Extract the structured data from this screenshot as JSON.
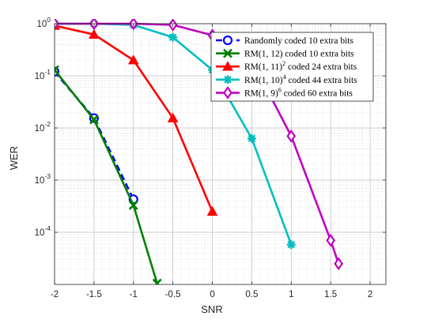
{
  "chart_data": {
    "type": "line",
    "title": "",
    "xlabel": "SNR",
    "ylabel": "WER",
    "xscale": "linear",
    "yscale": "log",
    "xlim": [
      -2,
      2.2
    ],
    "ylim": [
      1e-05,
      1
    ],
    "grid": true,
    "minor_grid": true,
    "legend_position": "top-right",
    "x_ticks": [
      -2,
      -1.5,
      -1,
      -0.5,
      0,
      0.5,
      1,
      1.5,
      2
    ],
    "x_tick_labels": [
      "-2",
      "-1.5",
      "-1",
      "-0.5",
      "0",
      "0.5",
      "1",
      "1.5",
      "2"
    ],
    "y_ticks": [
      0.0001,
      0.001,
      0.01,
      0.1,
      1
    ],
    "y_tick_labels": [
      {
        "base": "10",
        "exp": "-4"
      },
      {
        "base": "10",
        "exp": "-3"
      },
      {
        "base": "10",
        "exp": "-2"
      },
      {
        "base": "10",
        "exp": "-1"
      },
      {
        "base": "10",
        "exp": "0"
      }
    ],
    "series": [
      {
        "legend_parts": [
          "Randomly coded 10 extra bits"
        ],
        "color": "#0000ff",
        "dash": "dashed",
        "marker": "circle",
        "x": [
          -2,
          -1.5,
          -1
        ],
        "y": [
          0.12,
          0.0155,
          0.00043
        ]
      },
      {
        "legend_parts": [
          "RM(1, 12) coded 10 extra bits"
        ],
        "color": "#007f00",
        "dash": "solid",
        "marker": "x",
        "x": [
          -2,
          -1.5,
          -1,
          -0.7
        ],
        "y": [
          0.13,
          0.0145,
          0.00033,
          1.05e-05
        ]
      },
      {
        "legend_parts": [
          "RM(1, 11)",
          "2",
          " coded 24 extra bits"
        ],
        "color": "#ff0000",
        "dash": "solid",
        "marker": "triangle",
        "x": [
          -2,
          -1.5,
          -1,
          -0.5,
          0
        ],
        "y": [
          0.92,
          0.62,
          0.2,
          0.0155,
          0.00025
        ]
      },
      {
        "legend_parts": [
          "RM(1, 10)",
          "4",
          " coded 44 extra bits"
        ],
        "color": "#00bfbf",
        "dash": "solid",
        "marker": "star",
        "x": [
          -2,
          -1.5,
          -1,
          -0.5,
          0,
          0.5,
          1
        ],
        "y": [
          1.0,
          1.0,
          0.95,
          0.55,
          0.13,
          0.0063,
          5.8e-05
        ]
      },
      {
        "legend_parts": [
          "RM(1, 9)",
          "6",
          " coded 60 extra bits"
        ],
        "color": "#bf00bf",
        "dash": "solid",
        "marker": "diamond",
        "x": [
          -2,
          -1.5,
          -1,
          -0.5,
          0,
          0.5,
          1,
          1.5,
          1.6
        ],
        "y": [
          1.0,
          1.0,
          1.0,
          0.95,
          0.6,
          0.2,
          0.007,
          7e-05,
          2.5e-05
        ]
      }
    ]
  }
}
